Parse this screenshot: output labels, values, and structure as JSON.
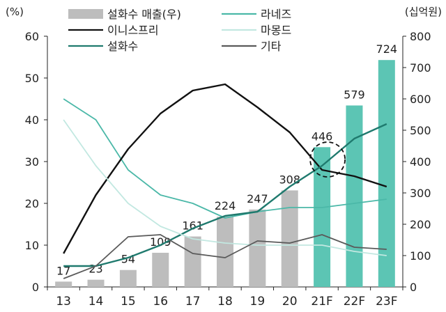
{
  "chart_data": {
    "type": "bar",
    "categories": [
      "13",
      "14",
      "15",
      "16",
      "17",
      "18",
      "19",
      "20",
      "21F",
      "22F",
      "23F"
    ],
    "left_axis": {
      "unit_label": "(%)",
      "range": [
        0,
        60
      ],
      "ticks": [
        "0",
        "10",
        "20",
        "30",
        "40",
        "50",
        "60"
      ]
    },
    "right_axis": {
      "unit_label": "(십억원)",
      "range": [
        0,
        800
      ],
      "ticks": [
        "0",
        "100",
        "200",
        "300",
        "400",
        "500",
        "600",
        "700",
        "800"
      ]
    },
    "bars": {
      "name": "설화수 매출(우)",
      "axis": "right",
      "values": [
        17,
        23,
        54,
        109,
        161,
        224,
        247,
        308,
        446,
        579,
        724
      ],
      "labels": [
        "17",
        "23",
        "54",
        "109",
        "161",
        "224",
        "247",
        "308",
        "446",
        "579",
        "724"
      ],
      "color_actual": "#bdbdbd",
      "color_forecast": "#5cc5b4"
    },
    "series": [
      {
        "name": "라네즈",
        "axis": "left",
        "color": "#4bb8a8",
        "values": [
          45,
          40,
          28,
          22,
          20,
          16.5,
          18,
          19,
          19,
          20,
          21
        ]
      },
      {
        "name": "이니스프리",
        "axis": "left",
        "color": "#111111",
        "values": [
          8,
          22,
          33,
          41.5,
          47,
          48.5,
          43,
          37,
          28,
          26.5,
          24
        ]
      },
      {
        "name": "설화수",
        "axis": "left",
        "color": "#1f7a6e",
        "values": [
          5,
          5,
          7,
          10,
          14,
          17,
          18,
          24,
          29,
          35.5,
          39
        ]
      },
      {
        "name": "마몽드",
        "axis": "left",
        "color": "#c2e8e1",
        "values": [
          40,
          29,
          20,
          14.5,
          11.5,
          10.5,
          10,
          10,
          10,
          8.5,
          7.5
        ]
      },
      {
        "name": "기타",
        "axis": "left",
        "color": "#5a5a5a",
        "values": [
          2,
          5,
          12,
          12.5,
          8,
          7,
          11,
          10.5,
          12.5,
          9.5,
          9
        ]
      }
    ],
    "annotation": {
      "type": "dashed-circle",
      "category": "21F",
      "note": ""
    },
    "legend_position": "top",
    "grid": false
  }
}
